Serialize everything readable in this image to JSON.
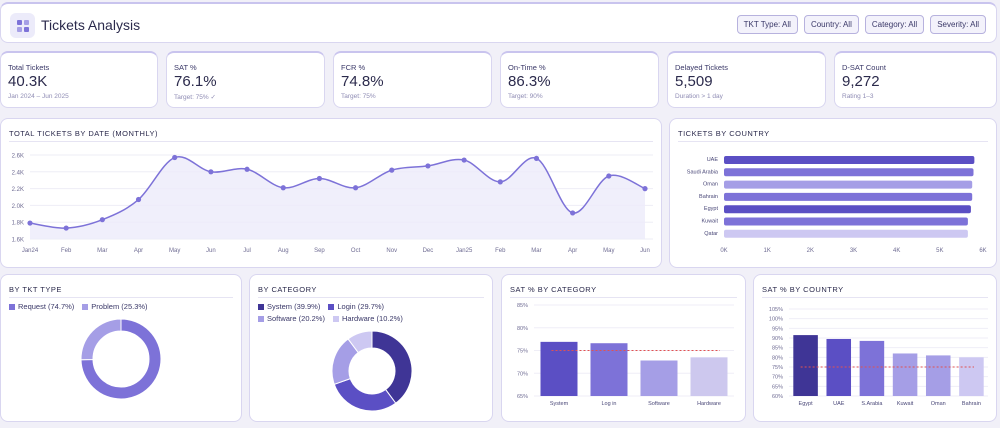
{
  "header": {
    "title": "Tickets Analysis",
    "filters": [
      "TKT Type: All",
      "Country: All",
      "Category: All",
      "Severity: All"
    ]
  },
  "kpis": [
    {
      "label": "Total Tickets",
      "value": "40.3K",
      "sub": "Jan 2024 – Jun 2025"
    },
    {
      "label": "SAT %",
      "value": "76.1%",
      "sub": "Target: 75% ✓"
    },
    {
      "label": "FCR %",
      "value": "74.8%",
      "sub": "Target: 75%"
    },
    {
      "label": "On-Time %",
      "value": "86.3%",
      "sub": "Target: 90%"
    },
    {
      "label": "Delayed Tickets",
      "value": "5,509",
      "sub": "Duration > 1 day"
    },
    {
      "label": "D-SAT Count",
      "value": "9,272",
      "sub": "Rating 1–3"
    }
  ],
  "colors": {
    "primary": "#5b4fc4",
    "dark": "#3f3596",
    "mid": "#7d72d8",
    "light": "#a59ee6",
    "pale": "#cdc8f2",
    "target": "#e05252"
  },
  "chart_data": [
    {
      "type": "line",
      "title": "TOTAL TICKETS BY DATE (MONTHLY)",
      "x": [
        "Jan24",
        "Feb",
        "Mar",
        "Apr",
        "May",
        "Jun",
        "Jul",
        "Aug",
        "Sep",
        "Oct",
        "Nov",
        "Dec",
        "Jan25",
        "Feb",
        "Mar",
        "Apr",
        "May",
        "Jun"
      ],
      "values": [
        1790,
        1730,
        1830,
        2070,
        2570,
        2400,
        2430,
        2210,
        2320,
        2210,
        2420,
        2470,
        2540,
        2280,
        2560,
        1910,
        2350,
        2200
      ],
      "yticks": [
        "1.6K",
        "1.8K",
        "2.0K",
        "2.2K",
        "2.4K",
        "2.6K"
      ],
      "ylim": [
        1600,
        2700
      ]
    },
    {
      "type": "bar",
      "title": "TICKETS BY COUNTRY",
      "categories": [
        "UAE",
        "Saudi Arabia",
        "Oman",
        "Bahrain",
        "Egypt",
        "Kuwait",
        "Qatar"
      ],
      "values": [
        5800,
        5780,
        5750,
        5750,
        5720,
        5650,
        5650
      ],
      "xticks": [
        "0K",
        "1K",
        "2K",
        "3K",
        "4K",
        "5K",
        "6K"
      ],
      "xlim": [
        0,
        6000
      ]
    },
    {
      "type": "pie",
      "title": "BY TKT TYPE",
      "legend": [
        "Request (74.7%)",
        "Problem (25.3%)"
      ],
      "values": [
        74.7,
        25.3
      ]
    },
    {
      "type": "pie",
      "title": "BY CATEGORY",
      "legend": [
        "System (39.9%)",
        "Login (29.7%)",
        "Software (20.2%)",
        "Hardware (10.2%)"
      ],
      "values": [
        39.9,
        29.7,
        20.2,
        10.2
      ]
    },
    {
      "type": "bar",
      "title": "SAT % BY CATEGORY",
      "categories": [
        "System",
        "Log in",
        "Software",
        "Hardware"
      ],
      "values": [
        76.9,
        76.6,
        72.8,
        73.5
      ],
      "target": 75,
      "yticks": [
        "65%",
        "70%",
        "75%",
        "80%",
        "85%"
      ],
      "ylim": [
        65,
        85
      ]
    },
    {
      "type": "bar",
      "title": "SAT % BY COUNTRY",
      "categories": [
        "Egypt",
        "UAE",
        "S.Arabia",
        "Kuwait",
        "Oman",
        "Bahrain"
      ],
      "values": [
        91.5,
        89.5,
        88.5,
        82,
        81,
        80
      ],
      "target": 75,
      "yticks": [
        "60%",
        "65%",
        "70%",
        "75%",
        "80%",
        "85%",
        "90%",
        "95%",
        "100%",
        "105%"
      ],
      "ylim": [
        60,
        105
      ]
    }
  ]
}
